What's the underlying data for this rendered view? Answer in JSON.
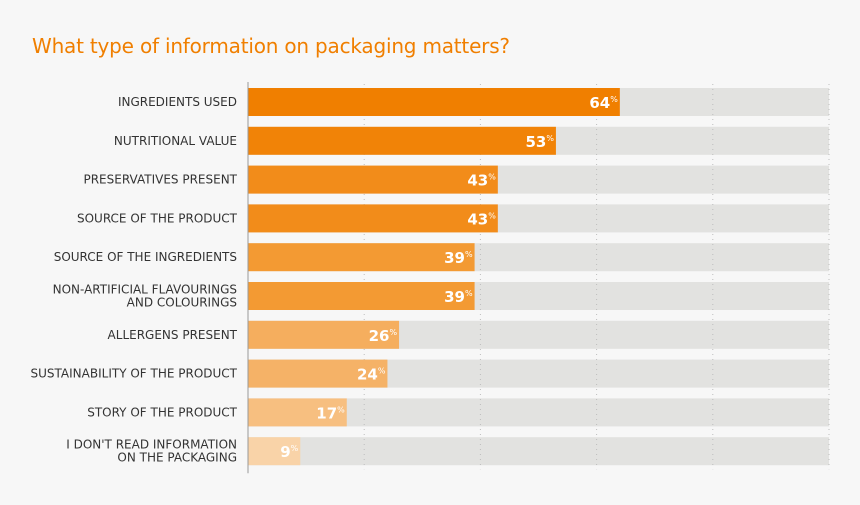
{
  "title": "What type of information on packaging matters?",
  "chart_data": {
    "type": "bar",
    "orientation": "horizontal",
    "title": "What type of information on packaging matters?",
    "categories": [
      [
        "INGREDIENTS USED"
      ],
      [
        "NUTRITIONAL VALUE"
      ],
      [
        "PRESERVATIVES PRESENT"
      ],
      [
        "SOURCE OF THE PRODUCT"
      ],
      [
        "SOURCE OF THE INGREDIENTS"
      ],
      [
        "NON-ARTIFICIAL FLAVOURINGS",
        "AND COLOURINGS"
      ],
      [
        "ALLERGENS PRESENT"
      ],
      [
        "SUSTAINABILITY OF THE PRODUCT"
      ],
      [
        "STORY OF THE PRODUCT"
      ],
      [
        "I DON'T READ INFORMATION",
        "ON THE PACKAGING"
      ]
    ],
    "values": [
      64,
      53,
      43,
      43,
      39,
      39,
      26,
      24,
      17,
      9
    ],
    "value_suffix": "%",
    "xlim": [
      0,
      100
    ],
    "grid_ticks": [
      20,
      40,
      60,
      80,
      100
    ],
    "colors": [
      "#f07f00",
      "#f18307",
      "#f28c1a",
      "#f28c1a",
      "#f39a33",
      "#f39a33",
      "#f5ae5e",
      "#f5b267",
      "#f7bf80",
      "#f9d3a8"
    ],
    "track_color": "#e2e2e0",
    "title_color": "#f07f00"
  }
}
